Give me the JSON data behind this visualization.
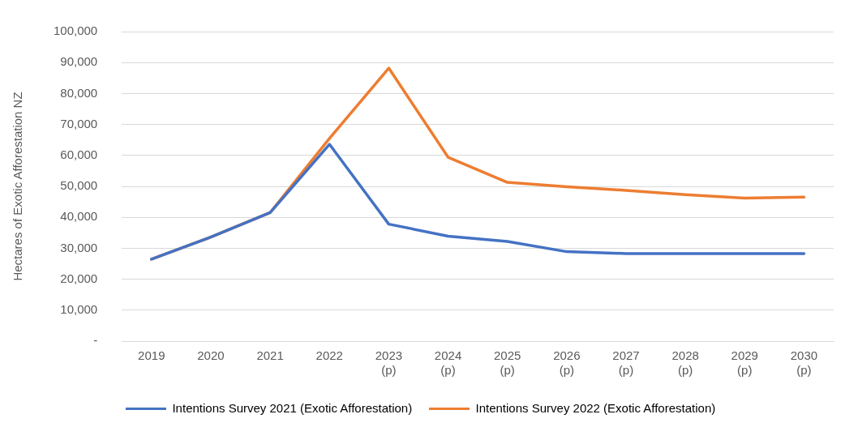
{
  "chart_data": {
    "type": "line",
    "ylabel": "Hectares of Exotic Afforestation NZ",
    "categories": [
      "2019",
      "2020",
      "2021",
      "2022",
      "2023\n(p)",
      "2024\n(p)",
      "2025\n(p)",
      "2026\n(p)",
      "2027\n(p)",
      "2028\n(p)",
      "2029\n(p)",
      "2030\n(p)"
    ],
    "series": [
      {
        "name": "Intentions Survey 2021 (Exotic Afforestation)",
        "color": "#4472c4",
        "values": [
          26500,
          33600,
          41500,
          63600,
          37800,
          33900,
          32200,
          28900,
          28300,
          28300,
          28300,
          28300
        ]
      },
      {
        "name": "Intentions Survey 2022 (Exotic Afforestation)",
        "color": "#ed7d31",
        "values": [
          26500,
          33600,
          41500,
          65500,
          88200,
          59400,
          51300,
          49900,
          48700,
          47300,
          46200,
          46500
        ]
      }
    ],
    "ylim": [
      0,
      100000
    ],
    "yticks": [
      {
        "value": 0,
        "label": "-"
      },
      {
        "value": 10000,
        "label": "10,000"
      },
      {
        "value": 20000,
        "label": "20,000"
      },
      {
        "value": 30000,
        "label": "30,000"
      },
      {
        "value": 40000,
        "label": "40,000"
      },
      {
        "value": 50000,
        "label": "50,000"
      },
      {
        "value": 60000,
        "label": "60,000"
      },
      {
        "value": 70000,
        "label": "70,000"
      },
      {
        "value": 80000,
        "label": "80,000"
      },
      {
        "value": 90000,
        "label": "90,000"
      },
      {
        "value": 100000,
        "label": "100,000"
      }
    ],
    "grid": "y",
    "legend": "bottom",
    "marker": "none",
    "line_style": "solid"
  }
}
